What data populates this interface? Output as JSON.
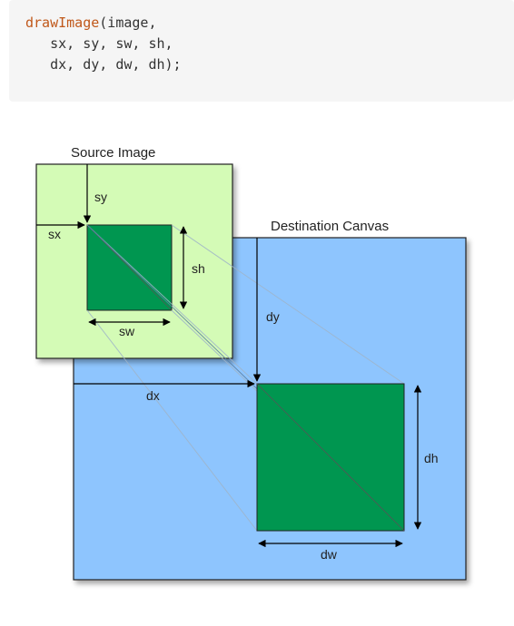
{
  "code": {
    "function_name": "drawImage",
    "line1_rest": "(image,",
    "line2": "   sx, sy, sw, sh,",
    "line3": "   dx, dy, dw, dh);"
  },
  "diagram": {
    "source_label": "Source Image",
    "destination_label": "Destination Canvas",
    "labels": {
      "sx": "sx",
      "sy": "sy",
      "sw": "sw",
      "sh": "sh",
      "dx": "dx",
      "dy": "dy",
      "dw": "dw",
      "dh": "dh"
    },
    "colors": {
      "source_fill": "#d4fbb6",
      "destination_fill": "#8ec5fe",
      "slice_fill": "#009650",
      "code_background": "#f5f5f5",
      "code_function": "#c0581a"
    }
  }
}
